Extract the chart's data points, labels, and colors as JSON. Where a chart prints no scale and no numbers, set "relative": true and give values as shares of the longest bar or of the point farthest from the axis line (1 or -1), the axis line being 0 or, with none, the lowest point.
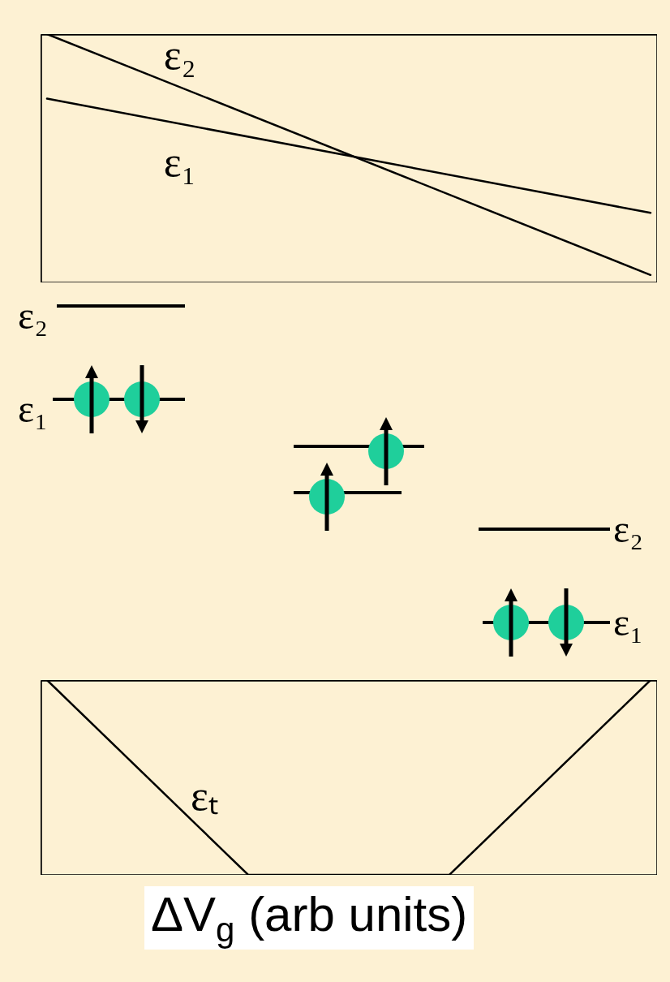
{
  "chart_data": [
    {
      "type": "line",
      "relative": true,
      "categories": [
        null,
        null
      ],
      "series": [
        {
          "name": "ε₂",
          "color": "#000000",
          "values": [
            1,
            0.03
          ]
        },
        {
          "name": "ε₁",
          "color": "#000000",
          "values": [
            0.74,
            0.28
          ]
        }
      ]
    },
    {
      "type": "other",
      "annotations": [
        "ε₂",
        "ε₁",
        "ε₂",
        "ε₁"
      ]
    },
    {
      "type": "line",
      "relative": true,
      "categories": [
        null,
        null,
        null,
        null
      ],
      "xlabel": "ΔV$_{g}$ (arb units)",
      "series": [
        {
          "name": "εₜ",
          "color": "#000000",
          "values": [
            1,
            0,
            0,
            1
          ]
        }
      ]
    }
  ]
}
